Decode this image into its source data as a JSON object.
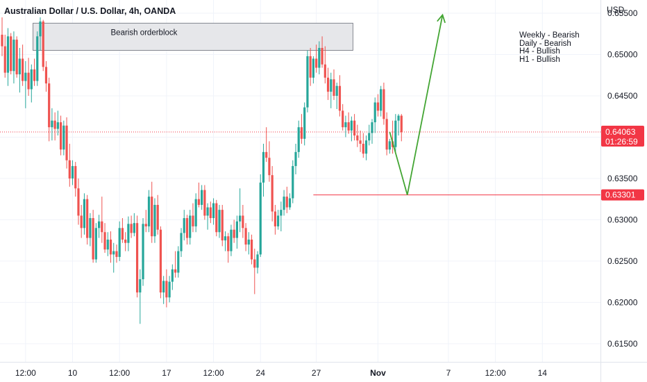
{
  "header": {
    "title": "Australian Dollar / U.S. Dollar, 4h, OANDA"
  },
  "price_axis": {
    "currency": "USD"
  },
  "colors": {
    "bull": "#26a69a",
    "bear": "#ef5350",
    "level": "#f23645",
    "projection": "#43a533",
    "zone_fill": "#e6e7ea",
    "zone_border": "#6a6d78"
  },
  "chart_data": {
    "type": "candlestick",
    "title": "Australian Dollar / U.S. Dollar, 4h, OANDA",
    "ylabel": "USD",
    "ylim": [
      0.6128,
      0.6566
    ],
    "y_ticks": [
      0.655,
      0.65,
      0.645,
      0.64,
      0.635,
      0.63,
      0.625,
      0.62,
      0.615
    ],
    "y_tick_labels": [
      "0.65500",
      "0.65000",
      "0.64500",
      "0.64000",
      "0.63500",
      "0.63000",
      "0.62500",
      "0.62000",
      "0.61500"
    ],
    "x_ticks": [
      {
        "i": 8,
        "label": "12:00"
      },
      {
        "i": 24,
        "label": "10"
      },
      {
        "i": 40,
        "label": "12:00"
      },
      {
        "i": 56,
        "label": "17"
      },
      {
        "i": 72,
        "label": "12:00"
      },
      {
        "i": 88,
        "label": "24"
      },
      {
        "i": 107,
        "label": "27"
      },
      {
        "i": 128,
        "label": "Nov"
      },
      {
        "i": 152,
        "label": "7"
      },
      {
        "i": 168,
        "label": "12:00"
      },
      {
        "i": 184,
        "label": "14"
      }
    ],
    "candles": [
      [
        0.6524,
        0.6545,
        0.6498,
        0.651
      ],
      [
        0.651,
        0.6524,
        0.6472,
        0.6478
      ],
      [
        0.6478,
        0.6532,
        0.6462,
        0.6522
      ],
      [
        0.6522,
        0.6526,
        0.6476,
        0.648
      ],
      [
        0.648,
        0.6528,
        0.6465,
        0.6518
      ],
      [
        0.6518,
        0.6522,
        0.6472,
        0.6476
      ],
      [
        0.6476,
        0.6508,
        0.6454,
        0.6495
      ],
      [
        0.6495,
        0.6512,
        0.6462,
        0.6468
      ],
      [
        0.6468,
        0.6492,
        0.6435,
        0.6478
      ],
      [
        0.6478,
        0.6496,
        0.645,
        0.6458
      ],
      [
        0.6458,
        0.6488,
        0.6442,
        0.6482
      ],
      [
        0.6482,
        0.6495,
        0.6462,
        0.6468
      ],
      [
        0.6468,
        0.6528,
        0.6462,
        0.6522
      ],
      [
        0.6522,
        0.6545,
        0.6505,
        0.654
      ],
      [
        0.654,
        0.6542,
        0.648,
        0.6485
      ],
      [
        0.6485,
        0.6492,
        0.6455,
        0.6465
      ],
      [
        0.6465,
        0.6472,
        0.6395,
        0.6412
      ],
      [
        0.6412,
        0.6435,
        0.6396,
        0.642
      ],
      [
        0.642,
        0.643,
        0.6396,
        0.641
      ],
      [
        0.641,
        0.6432,
        0.6402,
        0.6418
      ],
      [
        0.6418,
        0.6426,
        0.6378,
        0.6385
      ],
      [
        0.6385,
        0.642,
        0.6378,
        0.6414
      ],
      [
        0.6414,
        0.6424,
        0.6362,
        0.6372
      ],
      [
        0.6372,
        0.6392,
        0.634,
        0.635
      ],
      [
        0.635,
        0.6372,
        0.6342,
        0.6365
      ],
      [
        0.6365,
        0.637,
        0.6328,
        0.6338
      ],
      [
        0.6338,
        0.635,
        0.6294,
        0.6305
      ],
      [
        0.6305,
        0.6318,
        0.6278,
        0.629
      ],
      [
        0.629,
        0.6332,
        0.6282,
        0.6325
      ],
      [
        0.6325,
        0.633,
        0.627,
        0.6278
      ],
      [
        0.6278,
        0.6308,
        0.6268,
        0.6302
      ],
      [
        0.6302,
        0.6312,
        0.6248,
        0.6252
      ],
      [
        0.6252,
        0.6296,
        0.6248,
        0.629
      ],
      [
        0.629,
        0.6306,
        0.6278,
        0.6298
      ],
      [
        0.6298,
        0.6328,
        0.6272,
        0.6285
      ],
      [
        0.6285,
        0.6296,
        0.626,
        0.6264
      ],
      [
        0.6264,
        0.6285,
        0.6256,
        0.6276
      ],
      [
        0.6276,
        0.6286,
        0.6248,
        0.6258
      ],
      [
        0.6258,
        0.6272,
        0.6236,
        0.6262
      ],
      [
        0.6262,
        0.627,
        0.6248,
        0.6255
      ],
      [
        0.6255,
        0.6298,
        0.625,
        0.629
      ],
      [
        0.629,
        0.6302,
        0.6272,
        0.6276
      ],
      [
        0.6276,
        0.6285,
        0.6262,
        0.6272
      ],
      [
        0.6272,
        0.6304,
        0.6262,
        0.6295
      ],
      [
        0.6295,
        0.6305,
        0.6278,
        0.6284
      ],
      [
        0.6284,
        0.6308,
        0.628,
        0.6296
      ],
      [
        0.6296,
        0.6305,
        0.6206,
        0.6212
      ],
      [
        0.6212,
        0.624,
        0.6174,
        0.6228
      ],
      [
        0.6228,
        0.6302,
        0.622,
        0.6295
      ],
      [
        0.6295,
        0.6312,
        0.6285,
        0.6292
      ],
      [
        0.6292,
        0.6336,
        0.6285,
        0.6328
      ],
      [
        0.6328,
        0.6346,
        0.6272,
        0.628
      ],
      [
        0.628,
        0.6326,
        0.6272,
        0.6318
      ],
      [
        0.6318,
        0.633,
        0.6282,
        0.6288
      ],
      [
        0.6288,
        0.6292,
        0.6205,
        0.6212
      ],
      [
        0.6212,
        0.6232,
        0.6198,
        0.6226
      ],
      [
        0.6226,
        0.624,
        0.6194,
        0.6206
      ],
      [
        0.6206,
        0.6232,
        0.62,
        0.6225
      ],
      [
        0.6225,
        0.6246,
        0.6215,
        0.624
      ],
      [
        0.624,
        0.6262,
        0.623,
        0.6236
      ],
      [
        0.6236,
        0.6268,
        0.623,
        0.6262
      ],
      [
        0.6262,
        0.629,
        0.6255,
        0.6284
      ],
      [
        0.6284,
        0.6312,
        0.6275,
        0.6302
      ],
      [
        0.6302,
        0.6306,
        0.627,
        0.6278
      ],
      [
        0.6278,
        0.6312,
        0.627,
        0.6305
      ],
      [
        0.6305,
        0.632,
        0.6285,
        0.6292
      ],
      [
        0.6292,
        0.6332,
        0.6285,
        0.6325
      ],
      [
        0.6325,
        0.6345,
        0.6315,
        0.6318
      ],
      [
        0.6318,
        0.6342,
        0.6312,
        0.6336
      ],
      [
        0.6336,
        0.6342,
        0.63,
        0.6305
      ],
      [
        0.6305,
        0.632,
        0.6288,
        0.6315
      ],
      [
        0.6315,
        0.6322,
        0.6296,
        0.6302
      ],
      [
        0.6302,
        0.6326,
        0.6294,
        0.632
      ],
      [
        0.632,
        0.6324,
        0.628,
        0.6285
      ],
      [
        0.6285,
        0.6318,
        0.6278,
        0.6312
      ],
      [
        0.6312,
        0.6318,
        0.6268,
        0.6275
      ],
      [
        0.6275,
        0.6286,
        0.6262,
        0.628
      ],
      [
        0.628,
        0.6284,
        0.6248,
        0.6262
      ],
      [
        0.6262,
        0.6294,
        0.6256,
        0.6288
      ],
      [
        0.6288,
        0.63,
        0.6272,
        0.6278
      ],
      [
        0.6278,
        0.6305,
        0.6265,
        0.6298
      ],
      [
        0.6298,
        0.6338,
        0.6285,
        0.6305
      ],
      [
        0.6305,
        0.6318,
        0.6278,
        0.629
      ],
      [
        0.629,
        0.6296,
        0.6262,
        0.627
      ],
      [
        0.627,
        0.6285,
        0.6258,
        0.6276
      ],
      [
        0.6276,
        0.6282,
        0.6246,
        0.6252
      ],
      [
        0.6252,
        0.6265,
        0.621,
        0.6242
      ],
      [
        0.6242,
        0.6262,
        0.6235,
        0.6258
      ],
      [
        0.6258,
        0.6355,
        0.6255,
        0.6345
      ],
      [
        0.6345,
        0.6392,
        0.6328,
        0.6382
      ],
      [
        0.6382,
        0.6412,
        0.637,
        0.6375
      ],
      [
        0.6375,
        0.6395,
        0.6346,
        0.6354
      ],
      [
        0.6354,
        0.6365,
        0.6298,
        0.631
      ],
      [
        0.631,
        0.6318,
        0.6282,
        0.6292
      ],
      [
        0.6292,
        0.6312,
        0.6288,
        0.6305
      ],
      [
        0.6305,
        0.6322,
        0.6286,
        0.6312
      ],
      [
        0.6312,
        0.6336,
        0.6305,
        0.6328
      ],
      [
        0.6328,
        0.634,
        0.6308,
        0.6315
      ],
      [
        0.6315,
        0.6332,
        0.6312,
        0.6326
      ],
      [
        0.6326,
        0.6372,
        0.632,
        0.6365
      ],
      [
        0.6365,
        0.6392,
        0.6355,
        0.6382
      ],
      [
        0.6382,
        0.642,
        0.6375,
        0.6412
      ],
      [
        0.6412,
        0.6428,
        0.6392,
        0.6398
      ],
      [
        0.6398,
        0.6442,
        0.639,
        0.6436
      ],
      [
        0.6436,
        0.6505,
        0.643,
        0.6498
      ],
      [
        0.6498,
        0.6508,
        0.6462,
        0.6472
      ],
      [
        0.6472,
        0.6498,
        0.6465,
        0.6495
      ],
      [
        0.6495,
        0.6512,
        0.6478,
        0.6484
      ],
      [
        0.6484,
        0.6516,
        0.6476,
        0.6508
      ],
      [
        0.6508,
        0.6522,
        0.6484,
        0.6488
      ],
      [
        0.6488,
        0.651,
        0.6465,
        0.6472
      ],
      [
        0.6472,
        0.6484,
        0.6445,
        0.6455
      ],
      [
        0.6455,
        0.6478,
        0.6435,
        0.647
      ],
      [
        0.647,
        0.6482,
        0.6445,
        0.645
      ],
      [
        0.645,
        0.6466,
        0.6434,
        0.6462
      ],
      [
        0.6462,
        0.6475,
        0.6425,
        0.6432
      ],
      [
        0.6432,
        0.644,
        0.6408,
        0.6412
      ],
      [
        0.6412,
        0.6426,
        0.64,
        0.6418
      ],
      [
        0.6418,
        0.643,
        0.6404,
        0.6408
      ],
      [
        0.6408,
        0.6425,
        0.6395,
        0.642
      ],
      [
        0.642,
        0.6428,
        0.6396,
        0.6402
      ],
      [
        0.6402,
        0.6415,
        0.6388,
        0.6396
      ],
      [
        0.6396,
        0.6408,
        0.6382,
        0.6392
      ],
      [
        0.6392,
        0.6405,
        0.6375,
        0.638
      ],
      [
        0.638,
        0.6402,
        0.6372,
        0.6396
      ],
      [
        0.6396,
        0.6415,
        0.639,
        0.6405
      ],
      [
        0.6405,
        0.6422,
        0.6392,
        0.6418
      ],
      [
        0.6418,
        0.6448,
        0.6405,
        0.6442
      ],
      [
        0.6442,
        0.6452,
        0.6425,
        0.6432
      ],
      [
        0.6432,
        0.6462,
        0.6425,
        0.6458
      ],
      [
        0.6458,
        0.6466,
        0.6415,
        0.6422
      ],
      [
        0.6422,
        0.643,
        0.6378,
        0.6385
      ],
      [
        0.6385,
        0.6398,
        0.638,
        0.6395
      ],
      [
        0.6395,
        0.642,
        0.638,
        0.6388
      ],
      [
        0.6388,
        0.6428,
        0.6382,
        0.642
      ],
      [
        0.642,
        0.6428,
        0.6402,
        0.6426
      ],
      [
        0.6426,
        0.6428,
        0.6395,
        0.6406
      ]
    ],
    "current_price": 0.64063,
    "current_price_label": "0.64063",
    "countdown": "01:26:59",
    "support_level": 0.63301,
    "support_label": "0.63301",
    "orderblock": {
      "label": "Bearish orderblock",
      "top": 0.6538,
      "bottom": 0.6505,
      "from_i": 11,
      "to_i": 119
    },
    "projection": {
      "points": [
        [
          132,
          0.64063
        ],
        [
          138,
          0.63301
        ],
        [
          150,
          0.6548
        ]
      ]
    },
    "bias_note": [
      "Weekly - Bearish",
      "Daily - Bearish",
      "H4 - Bullish",
      "H1 - Bullish"
    ]
  }
}
